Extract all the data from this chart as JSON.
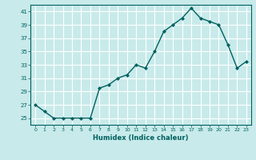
{
  "x": [
    0,
    1,
    2,
    3,
    4,
    5,
    6,
    7,
    8,
    9,
    10,
    11,
    12,
    13,
    14,
    15,
    16,
    17,
    18,
    19,
    20,
    21,
    22,
    23
  ],
  "y": [
    27,
    26,
    25,
    25,
    25,
    25,
    25,
    29.5,
    30,
    31,
    31.5,
    33,
    32.5,
    35,
    38,
    39,
    40,
    41.5,
    40,
    39.5,
    39,
    36,
    32.5,
    33.5
  ],
  "xlabel": "Humidex (Indice chaleur)",
  "ylim": [
    24.0,
    42.0
  ],
  "xlim": [
    -0.5,
    23.5
  ],
  "yticks": [
    25,
    27,
    29,
    31,
    33,
    35,
    37,
    39,
    41
  ],
  "xtick_labels": [
    "0",
    "1",
    "2",
    "3",
    "4",
    "5",
    "6",
    "7",
    "8",
    "9",
    "10",
    "11",
    "12",
    "13",
    "14",
    "15",
    "16",
    "17",
    "18",
    "19",
    "20",
    "21",
    "22",
    "23"
  ],
  "line_color": "#006060",
  "bg_color": "#c8eaea",
  "grid_color": "#ffffff",
  "marker_size": 2.0,
  "line_width": 1.0
}
